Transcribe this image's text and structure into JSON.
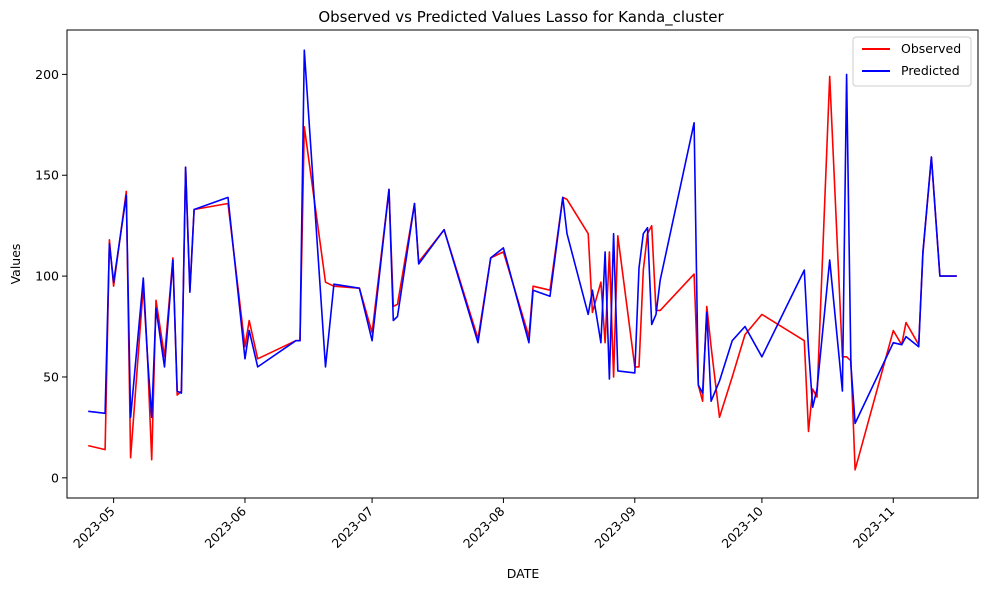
{
  "chart_data": {
    "type": "line",
    "title": "Observed vs Predicted Values Lasso for Kanda_cluster",
    "xlabel": "DATE",
    "ylabel": "Values",
    "legend_position": "top-right",
    "grid": false,
    "xlim": [
      "2023-04-20",
      "2023-11-21"
    ],
    "ylim": [
      -10,
      222
    ],
    "x_ticks": [
      "2023-05",
      "2023-06",
      "2023-07",
      "2023-08",
      "2023-09",
      "2023-10",
      "2023-11"
    ],
    "y_ticks": [
      0,
      50,
      100,
      150,
      200
    ],
    "x": [
      "2023-04-25",
      "2023-04-29",
      "2023-04-30",
      "2023-05-01",
      "2023-05-04",
      "2023-05-05",
      "2023-05-08",
      "2023-05-09",
      "2023-05-10",
      "2023-05-11",
      "2023-05-13",
      "2023-05-15",
      "2023-05-16",
      "2023-05-17",
      "2023-05-18",
      "2023-05-19",
      "2023-05-20",
      "2023-05-28",
      "2023-06-01",
      "2023-06-02",
      "2023-06-04",
      "2023-06-13",
      "2023-06-14",
      "2023-06-15",
      "2023-06-20",
      "2023-06-22",
      "2023-06-28",
      "2023-07-01",
      "2023-07-05",
      "2023-07-06",
      "2023-07-07",
      "2023-07-11",
      "2023-07-12",
      "2023-07-18",
      "2023-07-26",
      "2023-07-29",
      "2023-08-01",
      "2023-08-07",
      "2023-08-08",
      "2023-08-12",
      "2023-08-15",
      "2023-08-16",
      "2023-08-21",
      "2023-08-22",
      "2023-08-24",
      "2023-08-25",
      "2023-08-26",
      "2023-08-27",
      "2023-08-28",
      "2023-09-01",
      "2023-09-02",
      "2023-09-03",
      "2023-09-04",
      "2023-09-05",
      "2023-09-06",
      "2023-09-07",
      "2023-09-15",
      "2023-09-16",
      "2023-09-17",
      "2023-09-18",
      "2023-09-19",
      "2023-09-21",
      "2023-09-24",
      "2023-09-27",
      "2023-10-01",
      "2023-10-11",
      "2023-10-12",
      "2023-10-13",
      "2023-10-14",
      "2023-10-17",
      "2023-10-20",
      "2023-10-21",
      "2023-10-22",
      "2023-10-23",
      "2023-11-01",
      "2023-11-03",
      "2023-11-04",
      "2023-11-07",
      "2023-11-08",
      "2023-11-10",
      "2023-11-12",
      "2023-11-16"
    ],
    "series": [
      {
        "name": "Observed",
        "color": "#ff0000",
        "values": [
          16,
          14,
          118,
          95,
          142,
          10,
          95,
          60,
          9,
          88,
          60,
          109,
          41,
          43,
          154,
          93,
          133,
          136,
          65,
          78,
          59,
          68,
          68,
          174,
          97,
          95,
          94,
          72,
          143,
          85,
          86,
          136,
          107,
          123,
          69,
          109,
          112,
          70,
          95,
          93,
          139,
          138,
          121,
          82,
          97,
          67,
          112,
          50,
          120,
          55,
          55,
          103,
          121,
          125,
          83,
          83,
          101,
          46,
          38,
          85,
          65,
          30,
          50,
          71,
          81,
          68,
          23,
          44,
          40,
          199,
          60,
          60,
          58,
          4,
          73,
          66,
          77,
          66,
          111,
          159,
          100,
          100
        ],
        "note": "values approximated from plot"
      },
      {
        "name": "Predicted",
        "color": "#0000ff",
        "values": [
          33,
          32,
          116,
          97,
          140,
          30,
          99,
          60,
          30,
          84,
          55,
          108,
          43,
          42,
          154,
          92,
          133,
          139,
          59,
          73,
          55,
          68,
          68,
          212,
          55,
          96,
          94,
          68,
          143,
          78,
          80,
          136,
          106,
          123,
          67,
          109,
          114,
          67,
          93,
          90,
          139,
          121,
          81,
          93,
          67,
          112,
          49,
          121,
          53,
          52,
          104,
          121,
          124,
          76,
          81,
          98,
          176,
          46,
          42,
          82,
          38,
          48,
          68,
          75,
          60,
          103,
          64,
          35,
          44,
          108,
          43,
          200,
          56,
          27,
          67,
          66,
          70,
          65,
          112,
          159,
          100,
          100
        ]
      }
    ]
  }
}
